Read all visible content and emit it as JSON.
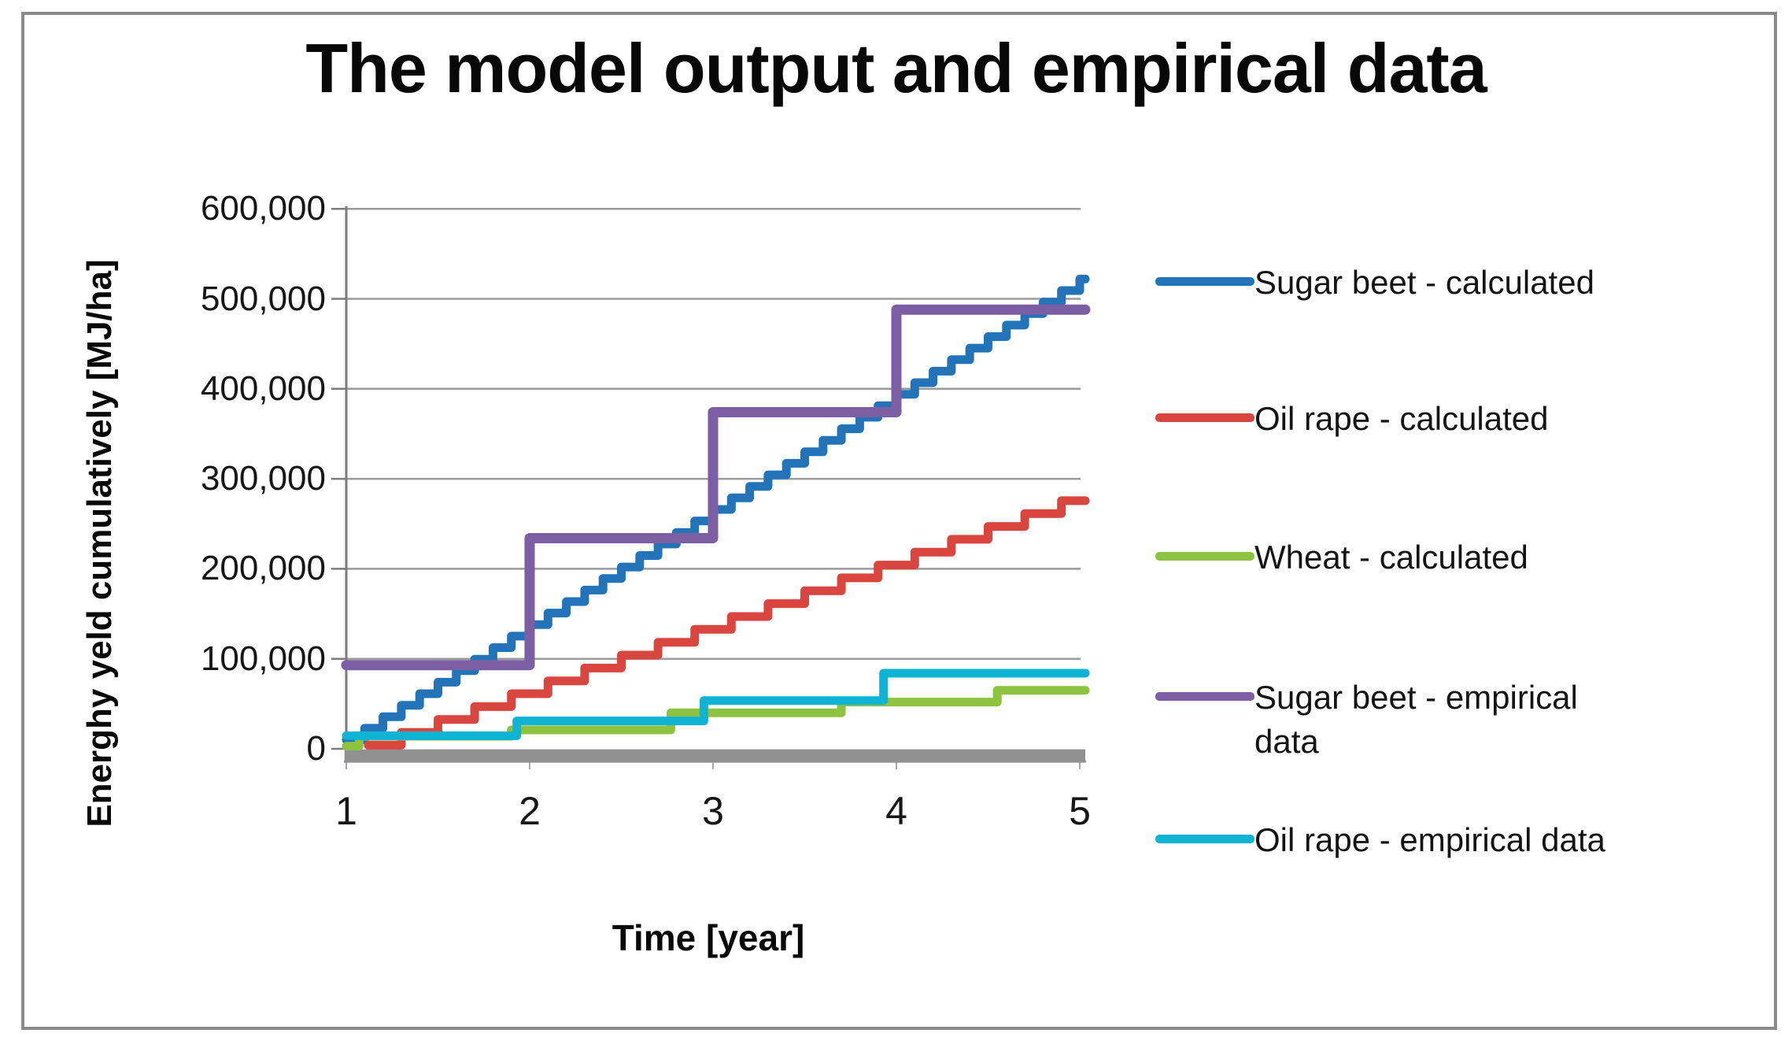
{
  "title": "The model output and empirical data",
  "chart_data": {
    "type": "line",
    "subtype": "step-after",
    "title": "The model output and empirical data",
    "xlabel": "Time [year]",
    "ylabel": "Energhy yeld cumulatively [MJ/ha]",
    "xlim": [
      1,
      5.03
    ],
    "ylim": [
      -20000,
      600000
    ],
    "grid": "horizontal",
    "legend_position": "right",
    "x_ticks": [
      {
        "v": 1,
        "label": "1"
      },
      {
        "v": 2,
        "label": "2"
      },
      {
        "v": 3,
        "label": "3"
      },
      {
        "v": 4,
        "label": "4"
      },
      {
        "v": 5,
        "label": "5"
      }
    ],
    "y_ticks": [
      {
        "v": 0,
        "label": "0"
      },
      {
        "v": 100000,
        "label": "100,000"
      },
      {
        "v": 200000,
        "label": "200,000"
      },
      {
        "v": 300000,
        "label": "300,000"
      },
      {
        "v": 400000,
        "label": "400,000"
      },
      {
        "v": 500000,
        "label": "500,000"
      },
      {
        "v": 600000,
        "label": "600,000"
      }
    ],
    "baseline": {
      "color": "#909090",
      "width": 17,
      "y": -8000,
      "x_start": 0.99,
      "x_end": 5.03
    },
    "series": [
      {
        "name": "Sugar beet - calculated",
        "legend_lines": [
          "Sugar beet - calculated"
        ],
        "color": "#2273b8",
        "stroke_width": 11,
        "points": [
          [
            1.0,
            10000
          ],
          [
            1.1,
            22800
          ],
          [
            1.2,
            35600
          ],
          [
            1.3,
            48400
          ],
          [
            1.4,
            61200
          ],
          [
            1.5,
            74000
          ],
          [
            1.6,
            86800
          ],
          [
            1.7,
            99600
          ],
          [
            1.8,
            112400
          ],
          [
            1.9,
            125200
          ],
          [
            2.0,
            138000
          ],
          [
            2.1,
            150800
          ],
          [
            2.2,
            163600
          ],
          [
            2.3,
            176400
          ],
          [
            2.4,
            189200
          ],
          [
            2.5,
            202000
          ],
          [
            2.6,
            214800
          ],
          [
            2.7,
            227600
          ],
          [
            2.8,
            240400
          ],
          [
            2.9,
            253200
          ],
          [
            3.0,
            266000
          ],
          [
            3.1,
            278800
          ],
          [
            3.2,
            291600
          ],
          [
            3.3,
            304400
          ],
          [
            3.4,
            317200
          ],
          [
            3.5,
            330000
          ],
          [
            3.6,
            342800
          ],
          [
            3.7,
            355600
          ],
          [
            3.8,
            368400
          ],
          [
            3.9,
            381200
          ],
          [
            4.0,
            394000
          ],
          [
            4.1,
            406800
          ],
          [
            4.2,
            419600
          ],
          [
            4.3,
            432400
          ],
          [
            4.4,
            445200
          ],
          [
            4.5,
            458000
          ],
          [
            4.6,
            470800
          ],
          [
            4.7,
            483600
          ],
          [
            4.8,
            496400
          ],
          [
            4.9,
            509200
          ],
          [
            5.0,
            522000
          ]
        ]
      },
      {
        "name": "Oil rape - calculated",
        "legend_lines": [
          "Oil rape - calculated"
        ],
        "color": "#d9453f",
        "stroke_width": 11,
        "points": [
          [
            1.12,
            4000
          ],
          [
            1.3,
            18300
          ],
          [
            1.5,
            32600
          ],
          [
            1.7,
            46900
          ],
          [
            1.9,
            61200
          ],
          [
            2.1,
            75500
          ],
          [
            2.3,
            89800
          ],
          [
            2.5,
            104100
          ],
          [
            2.7,
            118400
          ],
          [
            2.9,
            132700
          ],
          [
            3.1,
            147000
          ],
          [
            3.3,
            161300
          ],
          [
            3.5,
            175600
          ],
          [
            3.7,
            189900
          ],
          [
            3.9,
            204200
          ],
          [
            4.1,
            218500
          ],
          [
            4.3,
            232800
          ],
          [
            4.5,
            247100
          ],
          [
            4.7,
            261400
          ],
          [
            4.9,
            275700
          ]
        ]
      },
      {
        "name": "Wheat - calculated",
        "legend_lines": [
          "Wheat - calculated"
        ],
        "color": "#8dc341",
        "stroke_width": 11,
        "points": [
          [
            1.0,
            3000
          ],
          [
            1.07,
            14000
          ],
          [
            1.9,
            21000
          ],
          [
            2.77,
            40000
          ],
          [
            3.7,
            52000
          ],
          [
            4.55,
            65000
          ]
        ]
      },
      {
        "name": "Sugar beet - empirical data",
        "legend_lines": [
          "Sugar beet - empirical",
          "data"
        ],
        "color": "#7c5ea4",
        "stroke_width": 13,
        "points": [
          [
            1.0,
            93000
          ],
          [
            2.0,
            234000
          ],
          [
            3.0,
            374000
          ],
          [
            4.0,
            488000
          ]
        ]
      },
      {
        "name": "Oil rape - empirical data",
        "legend_lines": [
          "Oil rape - empirical data"
        ],
        "color": "#0fb4d4",
        "stroke_width": 11,
        "points": [
          [
            1.0,
            14500
          ],
          [
            1.93,
            31000
          ],
          [
            2.95,
            53500
          ],
          [
            3.93,
            84000
          ]
        ]
      }
    ]
  }
}
